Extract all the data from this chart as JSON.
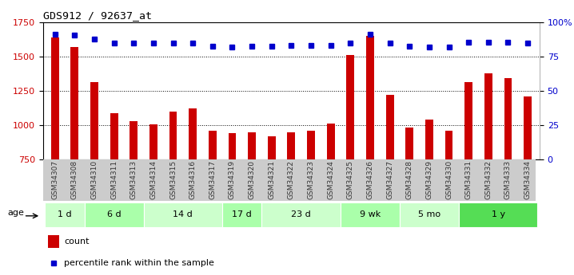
{
  "title": "GDS912 / 92637_at",
  "samples": [
    "GSM34307",
    "GSM34308",
    "GSM34310",
    "GSM34311",
    "GSM34313",
    "GSM34314",
    "GSM34315",
    "GSM34316",
    "GSM34317",
    "GSM34319",
    "GSM34320",
    "GSM34321",
    "GSM34322",
    "GSM34323",
    "GSM34324",
    "GSM34325",
    "GSM34326",
    "GSM34327",
    "GSM34328",
    "GSM34329",
    "GSM34330",
    "GSM34331",
    "GSM34332",
    "GSM34333",
    "GSM34334"
  ],
  "counts": [
    1635,
    1570,
    1310,
    1085,
    1030,
    1005,
    1100,
    1120,
    960,
    940,
    950,
    920,
    950,
    960,
    1010,
    1510,
    1650,
    1220,
    985,
    1040,
    960,
    1310,
    1375,
    1340,
    1210
  ],
  "percentile_vals": [
    1660,
    1655,
    1625,
    1595,
    1595,
    1598,
    1598,
    1598,
    1575,
    1570,
    1575,
    1575,
    1577,
    1577,
    1580,
    1598,
    1660,
    1598,
    1575,
    1567,
    1567,
    1605,
    1605,
    1605,
    1595
  ],
  "groups": [
    {
      "label": "1 d",
      "start": 0,
      "end": 1,
      "color": "#ccffcc"
    },
    {
      "label": "6 d",
      "start": 2,
      "end": 4,
      "color": "#aaffaa"
    },
    {
      "label": "14 d",
      "start": 5,
      "end": 8,
      "color": "#ccffcc"
    },
    {
      "label": "17 d",
      "start": 9,
      "end": 10,
      "color": "#aaffaa"
    },
    {
      "label": "23 d",
      "start": 11,
      "end": 14,
      "color": "#ccffcc"
    },
    {
      "label": "9 wk",
      "start": 15,
      "end": 17,
      "color": "#aaffaa"
    },
    {
      "label": "5 mo",
      "start": 18,
      "end": 20,
      "color": "#ccffcc"
    },
    {
      "label": "1 y",
      "start": 21,
      "end": 24,
      "color": "#55dd55"
    }
  ],
  "ymin": 750,
  "ymax": 1750,
  "yticks_left": [
    750,
    1000,
    1250,
    1500,
    1750
  ],
  "yticks_right": [
    0,
    25,
    50,
    75,
    100
  ],
  "bar_color": "#cc0000",
  "dot_color": "#0000cc",
  "bg_color": "#ffffff",
  "age_label": "age",
  "legend_count": "count",
  "legend_pct": "percentile rank within the sample",
  "bar_width": 0.4
}
